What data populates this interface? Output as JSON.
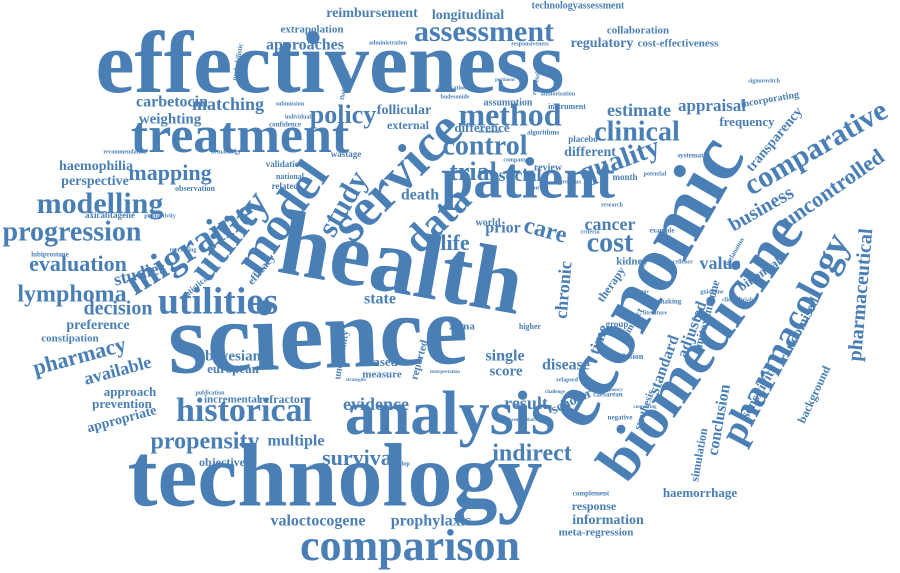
{
  "color": "#4a7fb5",
  "background": "#ffffff",
  "words": [
    "effectiveness",
    "health",
    "science",
    "technology",
    "economic",
    "analysis",
    "patient",
    "service",
    "biomedicine",
    "treatment",
    "comparison",
    "model",
    "migraine",
    "utility",
    "historical",
    "pharmacology",
    "data",
    "assessment",
    "method",
    "modelling",
    "progression",
    "utilities",
    "policy",
    "control",
    "clinical",
    "quality",
    "comparative",
    "cost",
    "study",
    "trial",
    "propensity",
    "survival",
    "indirect",
    "reimbursement",
    "longitudinal",
    "technologyassessment",
    "collaboration",
    "regulatory",
    "cost-effectiveness",
    "extrapolation",
    "approaches",
    "carbetocin",
    "matching",
    "weighting",
    "haemophilia",
    "perspective",
    "mapping",
    "evaluation",
    "lymphoma",
    "decision",
    "studies",
    "preference",
    "constipation",
    "pharmacy",
    "available",
    "approach",
    "prevention",
    "appropriate",
    "bayesian",
    "european",
    "incremental",
    "refractory",
    "evidence",
    "result",
    "multiple",
    "objective",
    "valoctocogene",
    "prophylaxis",
    "information",
    "meta-regression",
    "response",
    "haemorrhage",
    "pharmaceutical",
    "uncontrolled",
    "business",
    "transparency",
    "appraisal",
    "estimate",
    "frequency",
    "incorporating",
    "value",
    "adjusted",
    "standard",
    "scholar",
    "disease",
    "single",
    "score",
    "based",
    "measure",
    "state",
    "life",
    "care",
    "cancer",
    "death",
    "world",
    "prior",
    "social",
    "chronic",
    "time",
    "review",
    "different",
    "difference",
    "external",
    "follicular",
    "simulation",
    "conclusion",
    "background",
    "sensitivity",
    "randomised",
    "binomial",
    "mitoxantrone",
    "kidney",
    "systematic",
    "placebo",
    "instrument",
    "regression",
    "probabilistic",
    "axicabtagene",
    "lubiprostone",
    "efficacy",
    "statistical",
    "observation",
    "validation",
    "confidence",
    "national",
    "related",
    "wastage",
    "month",
    "group",
    "impact",
    "therapy",
    "synthesis",
    "uncertainty",
    "reported",
    "zuma",
    "higher",
    "inclusion",
    "negative",
    "complement",
    "melanoma",
    "guideline",
    "marketing",
    "productivity",
    "recommendation",
    "hematology",
    "submission",
    "individual",
    "administration",
    "responsiveness",
    "authorisation",
    "assumption",
    "implication",
    "algorithms",
    "company",
    "previous",
    "example",
    "research",
    "potential",
    "survey",
    "criteria",
    "develop",
    "dissemination",
    "excellence",
    "caesarean",
    "comparing",
    "literature",
    "making",
    "clinicaltrials",
    "fludarabine",
    "budesonide",
    "signorovitch",
    "treatments",
    "relapsed",
    "challenge",
    "frequency",
    "publication",
    "pertinent",
    "institute",
    "strategies",
    "interpretation"
  ]
}
